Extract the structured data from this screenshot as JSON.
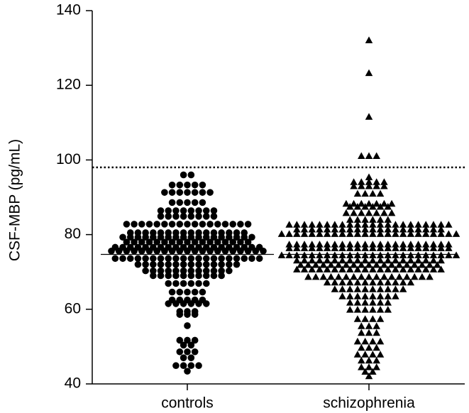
{
  "chart_data": {
    "type": "scatter",
    "subtype": "dot-strip",
    "title": "",
    "xlabel": "",
    "ylabel": "CSF-MBP (pg/mL)",
    "ylim": [
      40,
      140
    ],
    "yticks": [
      40,
      60,
      80,
      100,
      120,
      140
    ],
    "categories": [
      "controls",
      "schizophrenia"
    ],
    "grid": false,
    "reference_line": {
      "y": 98,
      "style": "dotted"
    },
    "series": [
      {
        "category": "controls",
        "marker": "circle",
        "median": 74.7,
        "bins": [
          {
            "y": 96.0,
            "count": 2
          },
          {
            "y": 93.3,
            "count": 5
          },
          {
            "y": 91.3,
            "count": 7
          },
          {
            "y": 88.6,
            "count": 5
          },
          {
            "y": 86.4,
            "count": 8
          },
          {
            "y": 84.9,
            "count": 8
          },
          {
            "y": 82.8,
            "count": 17
          },
          {
            "y": 80.5,
            "count": 16
          },
          {
            "y": 79.3,
            "count": 18
          },
          {
            "y": 78.0,
            "count": 17
          },
          {
            "y": 76.6,
            "count": 20
          },
          {
            "y": 75.6,
            "count": 21
          },
          {
            "y": 73.6,
            "count": 20
          },
          {
            "y": 72.0,
            "count": 14
          },
          {
            "y": 70.3,
            "count": 12
          },
          {
            "y": 69.0,
            "count": 10
          },
          {
            "y": 66.9,
            "count": 6
          },
          {
            "y": 64.6,
            "count": 5
          },
          {
            "y": 62.5,
            "count": 5
          },
          {
            "y": 61.5,
            "count": 6
          },
          {
            "y": 59.4,
            "count": 3
          },
          {
            "y": 58.6,
            "count": 3
          },
          {
            "y": 55.6,
            "count": 1
          },
          {
            "y": 51.7,
            "count": 3
          },
          {
            "y": 50.4,
            "count": 2
          },
          {
            "y": 48.6,
            "count": 3
          },
          {
            "y": 47.0,
            "count": 2
          },
          {
            "y": 44.9,
            "count": 4
          },
          {
            "y": 43.4,
            "count": 1
          }
        ]
      },
      {
        "category": "schizophrenia",
        "marker": "triangle",
        "median": 74.7,
        "bins": [
          {
            "y": 132.0,
            "count": 1
          },
          {
            "y": 123.2,
            "count": 1
          },
          {
            "y": 111.5,
            "count": 1
          },
          {
            "y": 101.0,
            "count": 3
          },
          {
            "y": 95.3,
            "count": 1
          },
          {
            "y": 94.0,
            "count": 5
          },
          {
            "y": 92.9,
            "count": 5
          },
          {
            "y": 90.9,
            "count": 4
          },
          {
            "y": 88.2,
            "count": 7
          },
          {
            "y": 87.4,
            "count": 6
          },
          {
            "y": 85.7,
            "count": 7
          },
          {
            "y": 83.9,
            "count": 6
          },
          {
            "y": 82.6,
            "count": 22
          },
          {
            "y": 81.3,
            "count": 20
          },
          {
            "y": 80.1,
            "count": 24
          },
          {
            "y": 77.3,
            "count": 22
          },
          {
            "y": 76.3,
            "count": 22
          },
          {
            "y": 74.4,
            "count": 24
          },
          {
            "y": 73.0,
            "count": 20
          },
          {
            "y": 71.8,
            "count": 19
          },
          {
            "y": 70.6,
            "count": 20
          },
          {
            "y": 68.6,
            "count": 17
          },
          {
            "y": 67.1,
            "count": 12
          },
          {
            "y": 65.3,
            "count": 10
          },
          {
            "y": 63.4,
            "count": 8
          },
          {
            "y": 61.7,
            "count": 6
          },
          {
            "y": 59.8,
            "count": 6
          },
          {
            "y": 57.3,
            "count": 4
          },
          {
            "y": 55.4,
            "count": 3
          },
          {
            "y": 53.6,
            "count": 3
          },
          {
            "y": 51.3,
            "count": 4
          },
          {
            "y": 49.6,
            "count": 3
          },
          {
            "y": 47.8,
            "count": 4
          },
          {
            "y": 46.2,
            "count": 3
          },
          {
            "y": 44.4,
            "count": 3
          },
          {
            "y": 43.2,
            "count": 2
          },
          {
            "y": 42.0,
            "count": 1
          }
        ]
      }
    ]
  }
}
